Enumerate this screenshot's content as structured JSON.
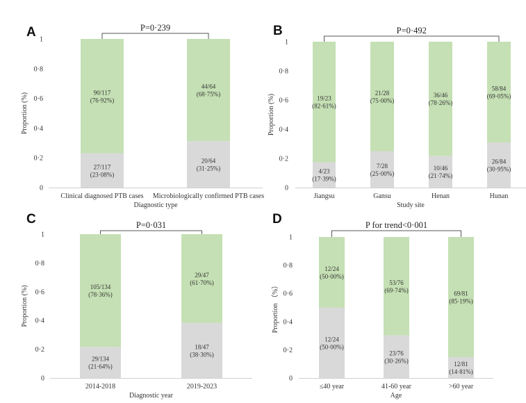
{
  "colors": {
    "bottom_segment": "#d9d9d9",
    "top_segment": "#c5e0b4",
    "axis": "#d0d0d0",
    "bracket": "#555555"
  },
  "chart_data": [
    {
      "panel": "A",
      "type": "bar",
      "stacked": true,
      "xlabel": "Diagnostic type",
      "ylabel": "Proportion (%)",
      "ylim": [
        0,
        1
      ],
      "yticks": [
        "0",
        "0·2",
        "0·4",
        "0·6",
        "0·8",
        "1"
      ],
      "grid": false,
      "categories": [
        "Clinical diagnosed PTB cases",
        "Microbiologically confirmed PTB cases"
      ],
      "series": [
        {
          "values": [
            0.2308,
            0.3125
          ],
          "labels": [
            "27/117",
            "20/64"
          ],
          "percent_labels": [
            "(23·08%)",
            "(31·25%)"
          ]
        },
        {
          "values": [
            0.7692,
            0.6875
          ],
          "labels": [
            "90/117",
            "44/64"
          ],
          "percent_labels": [
            "(76·92%)",
            "(68·75%)"
          ]
        }
      ],
      "annotation": "P=0·239"
    },
    {
      "panel": "B",
      "type": "bar",
      "stacked": true,
      "xlabel": "Study site",
      "ylabel": "Proportion (%)",
      "ylim": [
        0,
        1
      ],
      "yticks": [
        "0",
        "0·2",
        "0·4",
        "0·6",
        "0·8",
        "1"
      ],
      "grid": false,
      "categories": [
        "Jiangsu",
        "Gansu",
        "Henan",
        "Hunan"
      ],
      "series": [
        {
          "values": [
            0.1739,
            0.25,
            0.2174,
            0.3095
          ],
          "labels": [
            "4/23",
            "7/28",
            "10/46",
            "26/84"
          ],
          "percent_labels": [
            "(17·39%)",
            "(25·00%)",
            "(21·74%)",
            "(30·95%)"
          ]
        },
        {
          "values": [
            0.8261,
            0.75,
            0.7826,
            0.6905
          ],
          "labels": [
            "19/23",
            "21/28",
            "36/46",
            "58/84"
          ],
          "percent_labels": [
            "(82·61%)",
            "(75·00%)",
            "(78·26%)",
            "(69·05%)"
          ]
        }
      ],
      "annotation": "P=0·492"
    },
    {
      "panel": "C",
      "type": "bar",
      "stacked": true,
      "xlabel": "Diagnostic year",
      "ylabel": "Proportion (%)",
      "ylim": [
        0,
        1
      ],
      "yticks": [
        "0",
        "0·2",
        "0·4",
        "0·6",
        "0·8",
        "1"
      ],
      "grid": false,
      "categories": [
        "2014-2018",
        "2019-2023"
      ],
      "series": [
        {
          "values": [
            0.2164,
            0.383
          ],
          "labels": [
            "29/134",
            "18/47"
          ],
          "percent_labels": [
            "(21·64%)",
            "(38·30%)"
          ]
        },
        {
          "values": [
            0.7836,
            0.617
          ],
          "labels": [
            "105/134",
            "29/47"
          ],
          "percent_labels": [
            "(78·36%)",
            "(61·70%)"
          ]
        }
      ],
      "annotation": "P=0·031"
    },
    {
      "panel": "D",
      "type": "bar",
      "stacked": true,
      "xlabel": "Age",
      "ylabel": "Proportion （%）",
      "ylim": [
        0,
        1
      ],
      "yticks": [
        "0",
        "0·2",
        "0·4",
        "0·6",
        "0·8",
        "1"
      ],
      "grid": false,
      "categories": [
        "≤40 year",
        "41-60 year",
        ">60 year"
      ],
      "series": [
        {
          "values": [
            0.5,
            0.3026,
            0.1481
          ],
          "labels": [
            "12/24",
            "23/76",
            "12/81"
          ],
          "percent_labels": [
            "(50·00%)",
            "(30·26%)",
            "(14·81%)"
          ]
        },
        {
          "values": [
            0.5,
            0.6974,
            0.8519
          ],
          "labels": [
            "12/24",
            "53/76",
            "69/81"
          ],
          "percent_labels": [
            "(50·00%)",
            "(69·74%)",
            "(85·19%)"
          ]
        }
      ],
      "annotation": "P for trend<0·001"
    }
  ]
}
